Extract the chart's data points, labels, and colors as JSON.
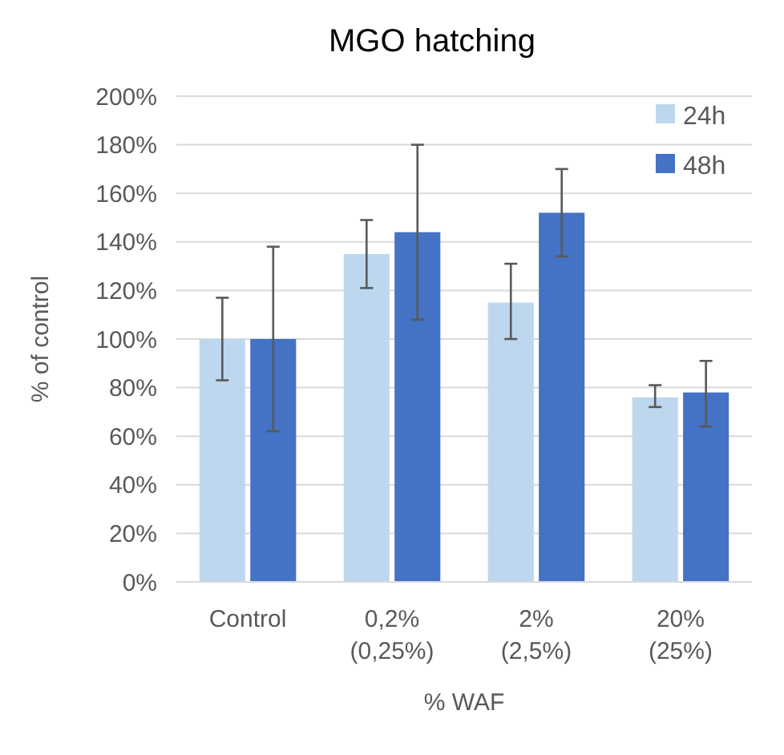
{
  "chart_data": {
    "type": "bar",
    "title": "MGO hatching",
    "xlabel": "% WAF",
    "ylabel": "% of control",
    "categories": [
      "Control",
      "0,2%\n(0,25%)",
      "2%\n(2,5%)",
      "20%\n(25%)"
    ],
    "series": [
      {
        "name": "24h",
        "color": "#bdd7ee",
        "values": [
          100,
          135,
          115,
          76
        ],
        "errors": [
          [
            83,
            117
          ],
          [
            121,
            149
          ],
          [
            100,
            131
          ],
          [
            72,
            81
          ]
        ]
      },
      {
        "name": "48h",
        "color": "#4472c4",
        "values": [
          100,
          144,
          152,
          78
        ],
        "errors": [
          [
            62,
            138
          ],
          [
            108,
            180
          ],
          [
            134,
            170
          ],
          [
            64,
            91
          ]
        ]
      }
    ],
    "ylim": [
      0,
      200
    ],
    "yticks": [
      {
        "value": 0,
        "label": "0%"
      },
      {
        "value": 20,
        "label": "20%"
      },
      {
        "value": 40,
        "label": "40%"
      },
      {
        "value": 60,
        "label": "60%"
      },
      {
        "value": 80,
        "label": "80%"
      },
      {
        "value": 100,
        "label": "100%"
      },
      {
        "value": 120,
        "label": "120%"
      },
      {
        "value": 140,
        "label": "140%"
      },
      {
        "value": 160,
        "label": "160%"
      },
      {
        "value": 180,
        "label": "180%"
      },
      {
        "value": 200,
        "label": "200%"
      }
    ],
    "grid": "y",
    "legend": "top right"
  }
}
